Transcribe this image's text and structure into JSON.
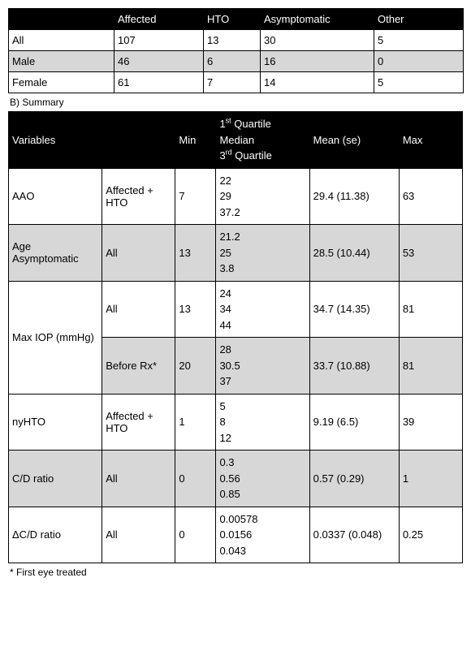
{
  "tableA": {
    "header": [
      "",
      "Affected",
      "HTO",
      "Asymptomatic",
      "Other"
    ],
    "rows": [
      {
        "cells": [
          "All",
          "107",
          "13",
          "30",
          "5"
        ],
        "shaded": false
      },
      {
        "cells": [
          "Male",
          "46",
          "6",
          "16",
          "0"
        ],
        "shaded": true
      },
      {
        "cells": [
          "Female",
          "61",
          "7",
          "14",
          "5"
        ],
        "shaded": false
      }
    ]
  },
  "captionB": "B) Summary",
  "tableB": {
    "header": {
      "c0": "Variables",
      "c1": "",
      "c2": "Min",
      "c3_line1_pre": "1",
      "c3_line1_sup": "st",
      "c3_line1_post": " Quartile",
      "c3_line2": "Median",
      "c3_line3_pre": "3",
      "c3_line3_sup": "rd",
      "c3_line3_post": " Quartile",
      "c4": "Mean (se)",
      "c5": "Max"
    },
    "rows": [
      {
        "variable": "AAO",
        "group": "Affected + HTO",
        "min": "7",
        "q1": "22",
        "q2": "29",
        "q3": "37.2",
        "mean": "29.4 (11.38)",
        "max": "63",
        "shaded": false,
        "rowspan": 1
      },
      {
        "variable": "Age Asymptomatic",
        "group": "All",
        "min": "13",
        "q1": "21.2",
        "q2": "25",
        "q3": "3.8",
        "mean": "28.5 (10.44)",
        "max": "53",
        "shaded": true,
        "rowspan": 1
      },
      {
        "variable": "Max IOP (mmHg)",
        "group": "All",
        "min": "13",
        "q1": "24",
        "q2": "34",
        "q3": "44",
        "mean": "34.7 (14.35)",
        "max": "81",
        "shaded": false,
        "rowspan": 2
      },
      {
        "variable": "",
        "group": "Before Rx*",
        "min": "20",
        "q1": "28",
        "q2": "30.5",
        "q3": "37",
        "mean": "33.7 (10.88)",
        "max": "81",
        "shaded": true,
        "rowspan": 0
      },
      {
        "variable": "nyHTO",
        "group": "Affected + HTO",
        "min": "1",
        "q1": "5",
        "q2": "8",
        "q3": "12",
        "mean": "9.19 (6.5)",
        "max": "39",
        "shaded": false,
        "rowspan": 1
      },
      {
        "variable": "C/D ratio",
        "group": "All",
        "min": "0",
        "q1": "0.3",
        "q2": "0.56",
        "q3": "0.85",
        "mean": "0.57 (0.29)",
        "max": "1",
        "shaded": true,
        "rowspan": 1
      },
      {
        "variable": "ΔC/D ratio",
        "group": "All",
        "min": "0",
        "q1": "0.00578",
        "q2": "0.0156",
        "q3": "0.043",
        "mean": "0.0337 (0.048)",
        "max": "0.25",
        "shaded": false,
        "rowspan": 1
      }
    ]
  },
  "footnote": "* First eye treated"
}
